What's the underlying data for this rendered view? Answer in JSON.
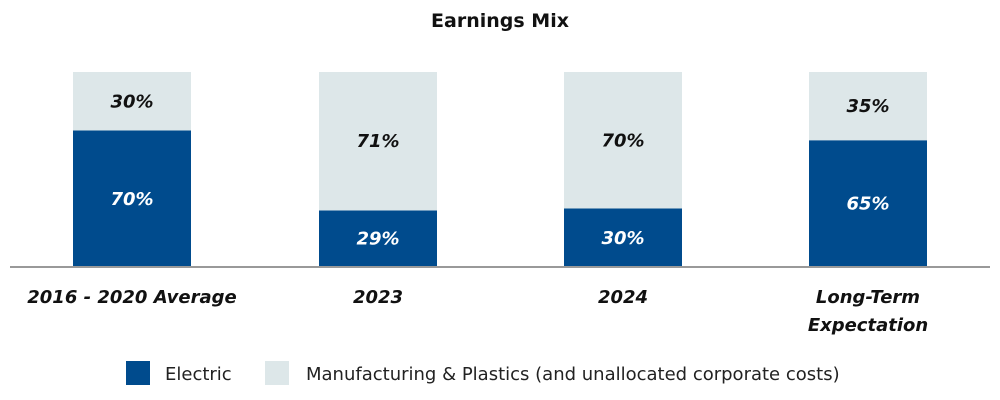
{
  "chart_data": {
    "type": "bar",
    "stacked": true,
    "title": "Earnings Mix",
    "categories": [
      "2016 - 2020 Average",
      "2023",
      "2024",
      "Long-Term Expectation"
    ],
    "series": [
      {
        "name": "Electric",
        "values": [
          70,
          29,
          30,
          65
        ],
        "labels": [
          "70%",
          "29%",
          "30%",
          "65%"
        ],
        "color": "#004B8D",
        "label_color": "#ffffff"
      },
      {
        "name": "Manufacturing & Plastics (and unallocated corporate costs)",
        "values": [
          30,
          71,
          70,
          35
        ],
        "labels": [
          "30%",
          "71%",
          "70%",
          "35%"
        ],
        "color": "#DDE7E9",
        "label_color": "#111111"
      }
    ],
    "ylim": [
      0,
      100
    ],
    "grid": false,
    "legend_position": "bottom"
  }
}
